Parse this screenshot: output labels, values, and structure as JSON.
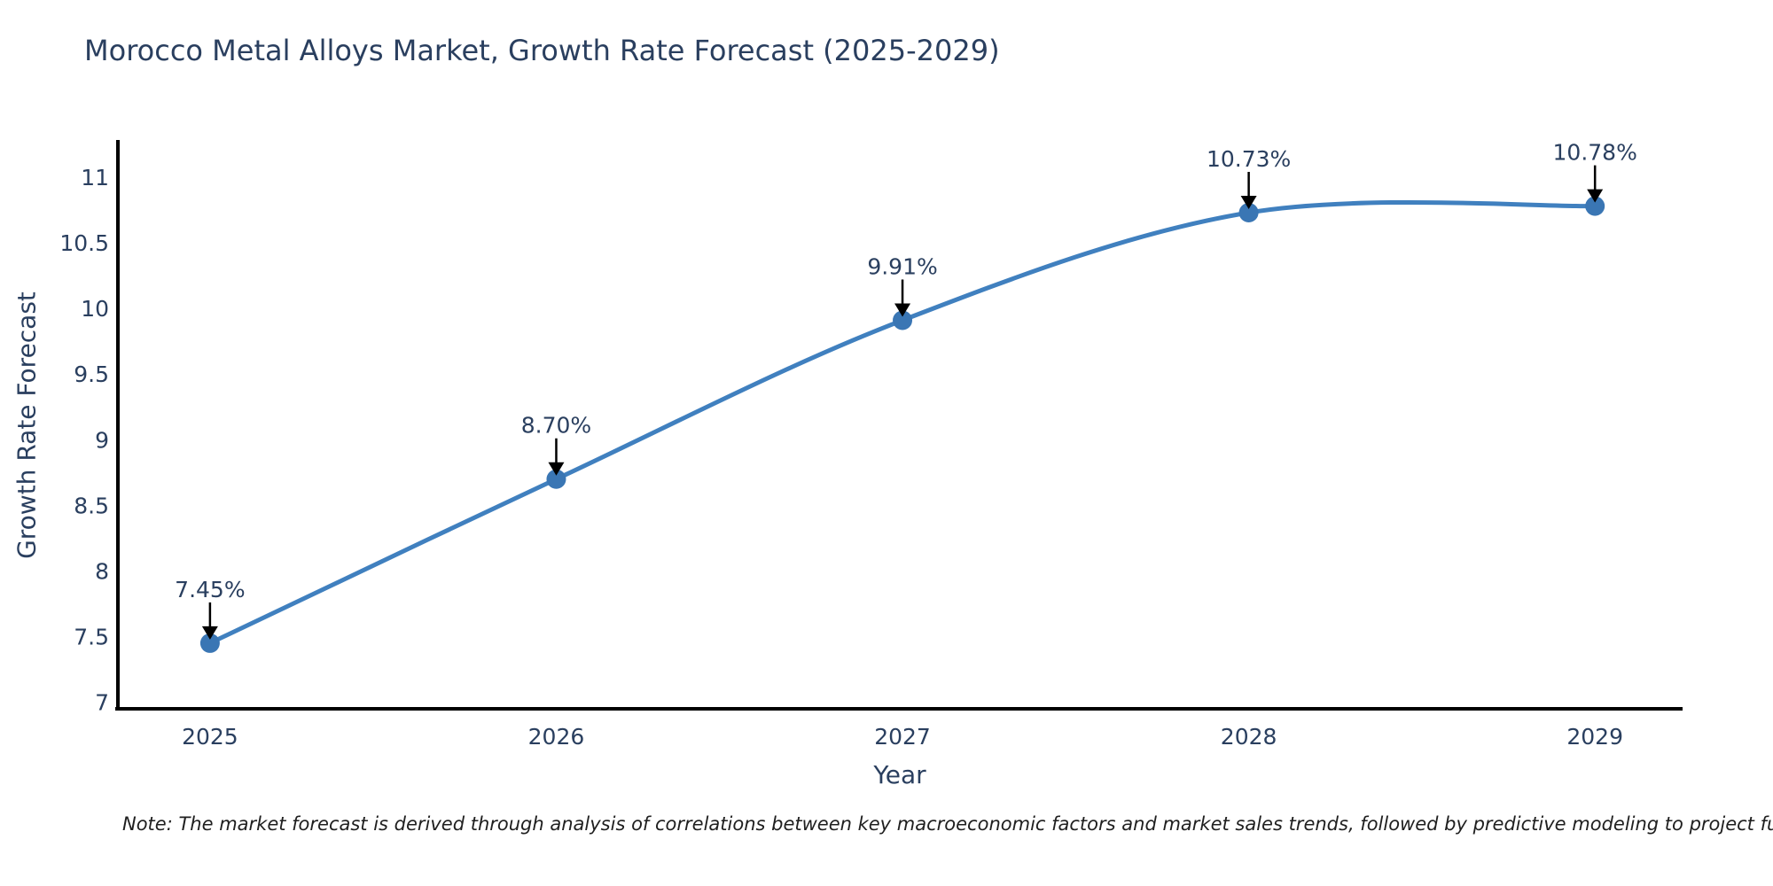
{
  "chart_data": {
    "type": "line",
    "title": "Morocco Metal Alloys Market, Growth Rate Forecast (2025-2029)",
    "xlabel": "Year",
    "ylabel": "Growth Rate Forecast",
    "x": [
      2025,
      2026,
      2027,
      2028,
      2029
    ],
    "values": [
      7.45,
      8.7,
      9.91,
      10.73,
      10.78
    ],
    "point_labels": [
      "7.45%",
      "8.70%",
      "9.91%",
      "10.73%",
      "10.78%"
    ],
    "xtick_labels": [
      "2025",
      "2026",
      "2027",
      "2028",
      "2029"
    ],
    "xtick_values": [
      2025,
      2026,
      2027,
      2028,
      2029
    ],
    "ytick_labels": [
      "7",
      "7.5",
      "8",
      "8.5",
      "9",
      "9.5",
      "10",
      "10.5",
      "11"
    ],
    "ytick_values": [
      7,
      7.5,
      8,
      8.5,
      9,
      9.5,
      10,
      10.5,
      11
    ],
    "xlim": [
      2024.734,
      2029.253
    ],
    "ylim": [
      6.95,
      11.27
    ],
    "grid": false,
    "legend": false,
    "line_color": "#4080bf",
    "marker_color": "#3a76b4",
    "axis_color": "#000000",
    "annotation_arrow_color": "#000000",
    "text_color": "#2a3f5f",
    "note": "Note: The market forecast is derived through analysis of correlations between key macroeconomic factors and market sales trends, followed by predictive modeling to project future sal"
  }
}
